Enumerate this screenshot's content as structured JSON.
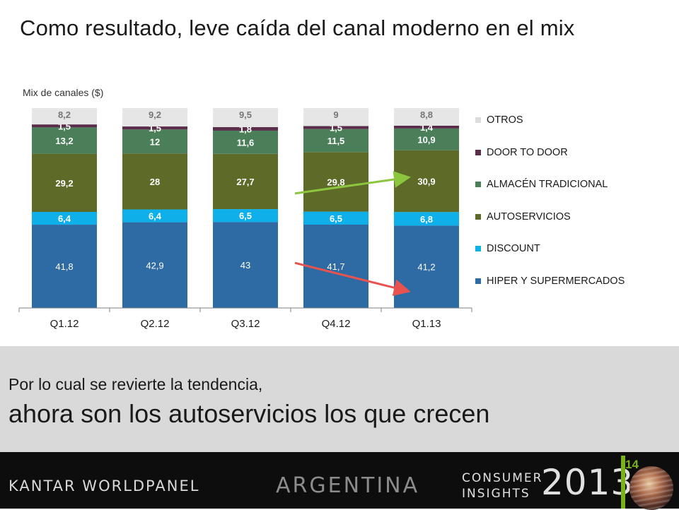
{
  "title": "Como resultado, leve caída del canal moderno en el mix",
  "band": {
    "line1": "Por lo cual se revierte la tendencia,",
    "line2": "ahora son los autoservicios los que crecen"
  },
  "footer": {
    "brand": "KANTAR WORLDPANEL",
    "country": "ARGENTINA",
    "consumer": "CONSUMER",
    "insights": "INSIGHTS",
    "year": "2013",
    "page": "14"
  },
  "chart_data": {
    "type": "bar",
    "stacked": true,
    "subtitle": "Mix de canales ($)",
    "categories": [
      "Q1.12",
      "Q2.12",
      "Q3.12",
      "Q4.12",
      "Q1.13"
    ],
    "ylim": [
      0,
      100
    ],
    "series": [
      {
        "name": "HIPER Y SUPERMERCADOS",
        "color": "#2e6aa3",
        "values": [
          41.8,
          42.9,
          43,
          41.7,
          41.2
        ],
        "labels": [
          "41,8",
          "42,9",
          "43",
          "41,7",
          "41,2"
        ]
      },
      {
        "name": "DISCOUNT",
        "color": "#0fb0ea",
        "values": [
          6.4,
          6.4,
          6.5,
          6.5,
          6.8
        ],
        "labels": [
          "6,4",
          "6,4",
          "6,5",
          "6,5",
          "6,8"
        ]
      },
      {
        "name": "AUTOSERVICIOS",
        "color": "#5d6a28",
        "values": [
          29.2,
          28,
          27.7,
          29.8,
          30.9
        ],
        "labels": [
          "29,2",
          "28",
          "27,7",
          "29,8",
          "30,9"
        ]
      },
      {
        "name": "ALMACÉN TRADICIONAL",
        "color": "#4a7f5a",
        "values": [
          13.2,
          12,
          11.6,
          11.5,
          10.9
        ],
        "labels": [
          "13,2",
          "12",
          "11,6",
          "11,5",
          "10,9"
        ]
      },
      {
        "name": "DOOR TO DOOR",
        "color": "#5a2d4a",
        "values": [
          1.5,
          1.5,
          1.8,
          1.5,
          1.4
        ],
        "labels": [
          "1,5",
          "1,5",
          "1,8",
          "1,5",
          "1,4"
        ]
      },
      {
        "name": "OTROS",
        "color": "#e6e6e6",
        "values": [
          8.2,
          9.2,
          9.5,
          9,
          8.8
        ],
        "labels": [
          "8,2",
          "9,2",
          "9,5",
          "9",
          "8,8"
        ]
      }
    ],
    "legend_position": "right",
    "legend_order": [
      "OTROS",
      "DOOR TO DOOR",
      "ALMACÉN TRADICIONAL",
      "AUTOSERVICIOS",
      "DISCOUNT",
      "HIPER Y SUPERMERCADOS"
    ],
    "annotations": [
      {
        "type": "arrow",
        "direction": "up",
        "color": "#8cc63f",
        "from_category": "Q3.12",
        "to_category": "Q1.13",
        "series": "AUTOSERVICIOS"
      },
      {
        "type": "arrow",
        "direction": "down",
        "color": "#e8534f",
        "from_category": "Q3.12",
        "to_category": "Q1.13",
        "series": "HIPER Y SUPERMERCADOS"
      }
    ]
  }
}
